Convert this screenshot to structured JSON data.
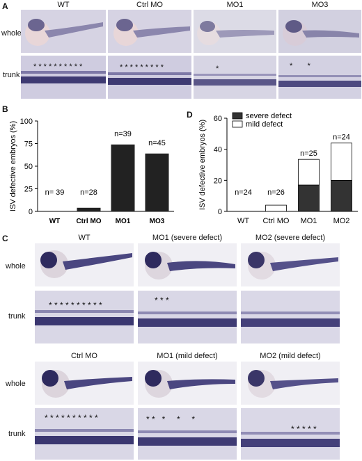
{
  "panelA": {
    "letter": "A",
    "columns": [
      "WT",
      "Ctrl MO",
      "MO1",
      "MO3"
    ],
    "rows": [
      "whole",
      "trunk"
    ],
    "trunk_asterisks": [
      "* * * * * * * * * *",
      "* * * * * * * * *",
      "*",
      "*       *"
    ]
  },
  "panelB": {
    "letter": "B",
    "chart_data": {
      "type": "bar",
      "categories": [
        "WT",
        "Ctrl MO",
        "MO1",
        "MO3"
      ],
      "values": [
        0,
        4,
        74,
        64
      ],
      "bar_labels": [
        "n= 39",
        "n=28",
        "n=39",
        "n=45"
      ],
      "ylabel": "ISV defective embryos (%)",
      "ylim": [
        0,
        100
      ],
      "yticks": [
        0,
        25,
        50,
        75,
        100
      ],
      "bar_color": "#222222"
    }
  },
  "panelD": {
    "letter": "D",
    "chart_data": {
      "type": "bar",
      "stacked": true,
      "categories": [
        "WT",
        "Ctrl MO",
        "MO1",
        "MO2"
      ],
      "series": [
        {
          "name": "severe defect",
          "values": [
            0,
            0,
            17,
            20
          ],
          "color": "#333333"
        },
        {
          "name": "mild defect",
          "values": [
            0,
            4,
            16.5,
            24
          ],
          "color": "#ffffff"
        }
      ],
      "bar_labels": [
        "n=24",
        "n=26",
        "n=25",
        "n=24"
      ],
      "ylabel": "ISV defective embryos (%)",
      "ylim": [
        0,
        60
      ],
      "yticks": [
        0,
        20,
        40,
        60
      ],
      "legend_position": "top-left"
    }
  },
  "panelC": {
    "letter": "C",
    "top_columns": [
      "WT",
      "MO1 (severe defect)",
      "MO2 (severe defect)"
    ],
    "bottom_columns": [
      "Ctrl MO",
      "MO1 (mild defect)",
      "MO2 (mild defect)"
    ],
    "rows": [
      "whole",
      "trunk"
    ],
    "top_trunk_asterisks": [
      "* * * * * * * * * *",
      "* * *",
      ""
    ],
    "bottom_trunk_asterisks": [
      "* * * * * * * * * *",
      "* *   *     *     *",
      "* * * * *"
    ]
  }
}
